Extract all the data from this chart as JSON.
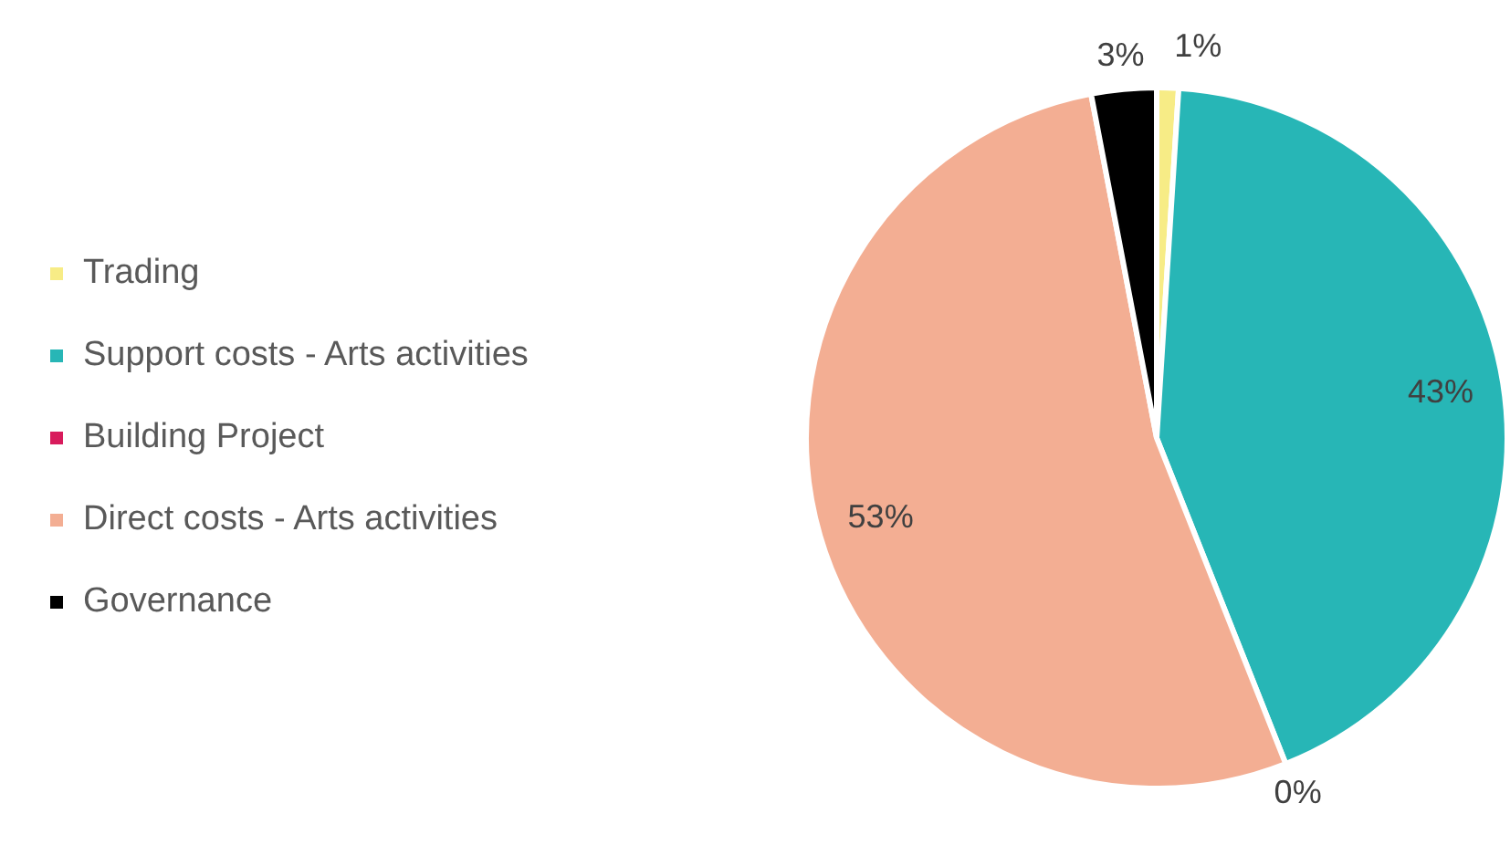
{
  "chart_data": {
    "type": "pie",
    "categories": [
      "Trading",
      "Support costs - Arts activities",
      "Building Project",
      "Direct costs - Arts activities",
      "Governance"
    ],
    "values": [
      1,
      43,
      0,
      53,
      3
    ],
    "colors": [
      "#f7ec86",
      "#27b6b6",
      "#d81b5c",
      "#f3ae93",
      "#000000"
    ],
    "value_labels": [
      "1%",
      "43%",
      "0%",
      "53%",
      "3%"
    ],
    "legend": "left"
  }
}
